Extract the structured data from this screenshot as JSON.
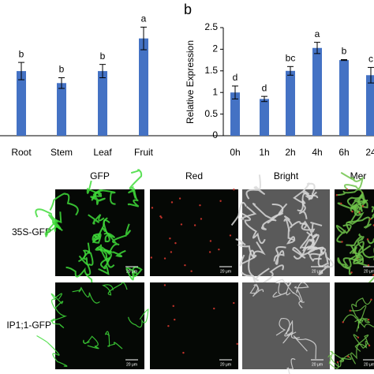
{
  "chart_data": [
    {
      "type": "bar",
      "categories": [
        "Root",
        "Stem",
        "Leaf",
        "Fruit"
      ],
      "values": [
        0.97,
        0.79,
        0.97,
        1.46
      ],
      "errors": [
        0.13,
        0.08,
        0.1,
        0.17
      ],
      "annotations": [
        "b",
        "b",
        "b",
        "a"
      ],
      "color": "#4472c4",
      "ylim": [
        0,
        1.8
      ]
    },
    {
      "type": "bar",
      "panel_label": "b",
      "y_label": "Relative Expression",
      "categories": [
        "0h",
        "1h",
        "2h",
        "4h",
        "6h",
        "24"
      ],
      "values": [
        1.0,
        0.85,
        1.5,
        2.03,
        1.75,
        1.4
      ],
      "errors": [
        0.15,
        0.06,
        0.1,
        0.13,
        0.01,
        0.18
      ],
      "annotations": [
        "d",
        "d",
        "bc",
        "a",
        "b",
        "c"
      ],
      "color": "#4472c4",
      "ylim": [
        0,
        2.5
      ],
      "yticks": [
        0,
        0.5,
        1,
        1.5,
        2,
        2.5
      ]
    }
  ],
  "image_grid": {
    "columns": [
      "GFP",
      "Red",
      "Bright",
      "Mer"
    ],
    "rows": [
      "35S-GFP",
      "IP1;1-GFP"
    ],
    "scale_bar": "20 μm"
  }
}
